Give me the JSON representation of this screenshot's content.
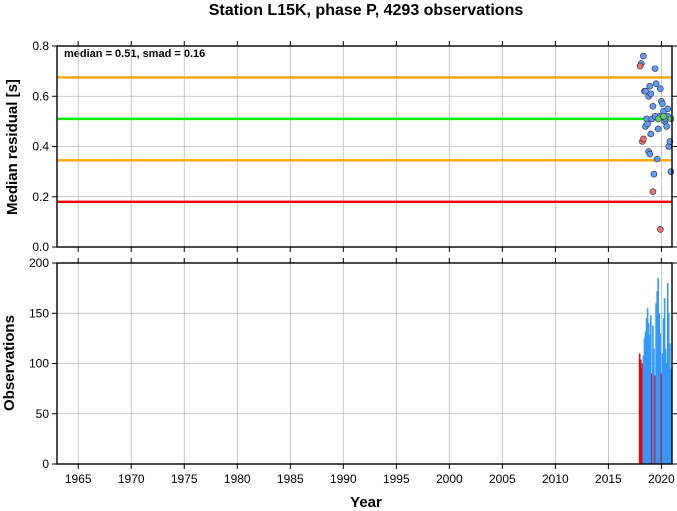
{
  "chart_data": {
    "title": "Station L15K, phase P, 4293 observations",
    "xlabel": "Year",
    "xlim": [
      1963,
      2021
    ],
    "xticks": [
      1965,
      1970,
      1975,
      1980,
      1985,
      1990,
      1995,
      2000,
      2005,
      2010,
      2015,
      2020
    ],
    "grid": true,
    "panels": [
      {
        "type": "scatter",
        "ylabel": "Median residual [s]",
        "ylim": [
          0.0,
          0.8
        ],
        "yticks": [
          "0.0",
          "0.2",
          "0.4",
          "0.6",
          "0.8"
        ],
        "annotation": "median = 0.51, smad = 0.16",
        "reference_lines": [
          {
            "value": 0.51,
            "color": "#00ee00"
          },
          {
            "value": 0.675,
            "color": "#ffa500"
          },
          {
            "value": 0.345,
            "color": "#ffa500"
          },
          {
            "value": 0.18,
            "color": "#ee0000"
          }
        ],
        "series": [
          {
            "color": "#5b9bff",
            "points": [
              [
                2018.1,
                0.73
              ],
              [
                2018.3,
                0.76
              ],
              [
                2018.4,
                0.62
              ],
              [
                2018.5,
                0.62
              ],
              [
                2018.6,
                0.51
              ],
              [
                2018.5,
                0.48
              ],
              [
                2018.7,
                0.49
              ],
              [
                2018.8,
                0.38
              ],
              [
                2018.9,
                0.37
              ],
              [
                2018.8,
                0.6
              ],
              [
                2019.0,
                0.61
              ],
              [
                2019.1,
                0.51
              ],
              [
                2019.2,
                0.56
              ],
              [
                2019.3,
                0.29
              ],
              [
                2019.4,
                0.71
              ],
              [
                2019.5,
                0.65
              ],
              [
                2019.6,
                0.35
              ],
              [
                2019.7,
                0.47
              ],
              [
                2019.8,
                0.52
              ],
              [
                2019.9,
                0.63
              ],
              [
                2020.0,
                0.58
              ],
              [
                2020.1,
                0.57
              ],
              [
                2020.2,
                0.54
              ],
              [
                2020.3,
                0.5
              ],
              [
                2020.4,
                0.51
              ],
              [
                2020.5,
                0.48
              ],
              [
                2020.6,
                0.55
              ],
              [
                2020.7,
                0.4
              ],
              [
                2020.8,
                0.42
              ],
              [
                2020.9,
                0.3
              ],
              [
                2020.6,
                0.52
              ],
              [
                2019.4,
                0.52
              ],
              [
                2019.0,
                0.45
              ],
              [
                2018.9,
                0.64
              ]
            ]
          },
          {
            "color": "#f07070",
            "points": [
              [
                2018.0,
                0.72
              ],
              [
                2018.2,
                0.42
              ],
              [
                2018.3,
                0.43
              ],
              [
                2019.2,
                0.22
              ],
              [
                2019.9,
                0.07
              ]
            ]
          },
          {
            "color": "#60d060",
            "points": [
              [
                2019.7,
                0.51
              ],
              [
                2020.2,
                0.52
              ],
              [
                2020.9,
                0.51
              ]
            ]
          }
        ]
      },
      {
        "type": "bar",
        "ylabel": "Observations",
        "ylim": [
          0,
          200
        ],
        "yticks": [
          "0",
          "50",
          "100",
          "150",
          "200"
        ],
        "bar_color": "#3399ff",
        "outlier_bar_color": "#ee0000",
        "bars": [
          [
            2017.95,
            110,
            "red"
          ],
          [
            2018.05,
            104,
            "red"
          ],
          [
            2018.15,
            95,
            "red"
          ],
          [
            2018.22,
            100,
            "red"
          ],
          [
            2018.3,
            108,
            "blue"
          ],
          [
            2018.4,
            125,
            "blue"
          ],
          [
            2018.5,
            132,
            "blue"
          ],
          [
            2018.6,
            145,
            "blue"
          ],
          [
            2018.7,
            155,
            "blue"
          ],
          [
            2018.8,
            140,
            "blue"
          ],
          [
            2018.9,
            128,
            "blue"
          ],
          [
            2019.0,
            148,
            "blue"
          ],
          [
            2019.1,
            90,
            "red"
          ],
          [
            2019.2,
            138,
            "blue"
          ],
          [
            2019.3,
            115,
            "blue"
          ],
          [
            2019.4,
            88,
            "red"
          ],
          [
            2019.5,
            160,
            "blue"
          ],
          [
            2019.6,
            172,
            "blue"
          ],
          [
            2019.7,
            185,
            "blue"
          ],
          [
            2019.8,
            150,
            "blue"
          ],
          [
            2019.9,
            130,
            "blue"
          ],
          [
            2020.0,
            90,
            "red"
          ],
          [
            2020.1,
            110,
            "blue"
          ],
          [
            2020.2,
            145,
            "blue"
          ],
          [
            2020.3,
            165,
            "blue"
          ],
          [
            2020.4,
            115,
            "blue"
          ],
          [
            2020.5,
            100,
            "blue"
          ],
          [
            2020.6,
            180,
            "blue"
          ],
          [
            2020.7,
            150,
            "blue"
          ],
          [
            2020.8,
            120,
            "blue"
          ],
          [
            2020.9,
            95,
            "blue"
          ]
        ]
      }
    ]
  }
}
